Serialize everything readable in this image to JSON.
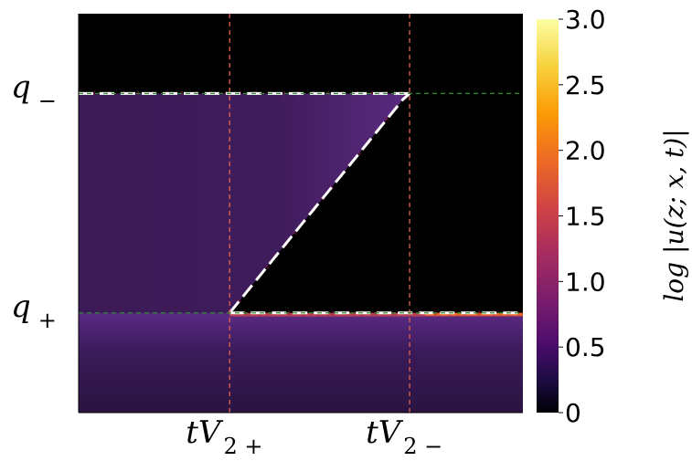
{
  "chart_data": {
    "type": "heatmap",
    "title": "",
    "xlabel": "",
    "ylabel": "",
    "x_ticks": [
      {
        "label": "tV",
        "sub": "2+",
        "value": 0.34
      },
      {
        "label": "tV",
        "sub": "2−",
        "value": 0.745
      }
    ],
    "y_ticks": [
      {
        "label": "q",
        "sub": "−",
        "value": 0.8
      },
      {
        "label": "q",
        "sub": "+",
        "value": 0.25
      }
    ],
    "xlim": [
      0,
      1
    ],
    "ylim": [
      0,
      1
    ],
    "colorbar": {
      "label": "log |u(z; x, t)|",
      "min": 0,
      "max": 3.0,
      "ticks": [
        "0",
        "0.5",
        "1.0",
        "1.5",
        "2.0",
        "2.5",
        "3.0"
      ],
      "tick_values": [
        0,
        0.5,
        1.0,
        1.5,
        2.0,
        2.5,
        3.0
      ],
      "colormap": "inferno"
    },
    "regions": [
      {
        "name": "top",
        "value": 0.0
      },
      {
        "name": "left-band",
        "value": 0.5
      },
      {
        "name": "wedge",
        "value": 0.0
      },
      {
        "name": "bottom-band",
        "value": 0.45
      }
    ],
    "curves": [
      {
        "name": "upper-edge",
        "points": [
          [
            0,
            0.8
          ],
          [
            0.745,
            0.8
          ]
        ]
      },
      {
        "name": "slanted-edge",
        "points": [
          [
            0.34,
            0.25
          ],
          [
            0.73,
            0.785
          ],
          [
            0.745,
            0.8
          ]
        ]
      },
      {
        "name": "lower-edge",
        "points": [
          [
            0.34,
            0.25
          ],
          [
            1,
            0.25
          ]
        ]
      }
    ],
    "colors": {
      "vline": "#e0624f",
      "hline": "#2e8b2e",
      "dash": "#ffffff",
      "dark": "#000000",
      "band": "#3b1a55",
      "band_light": "#5a2a80"
    },
    "grid": false
  }
}
